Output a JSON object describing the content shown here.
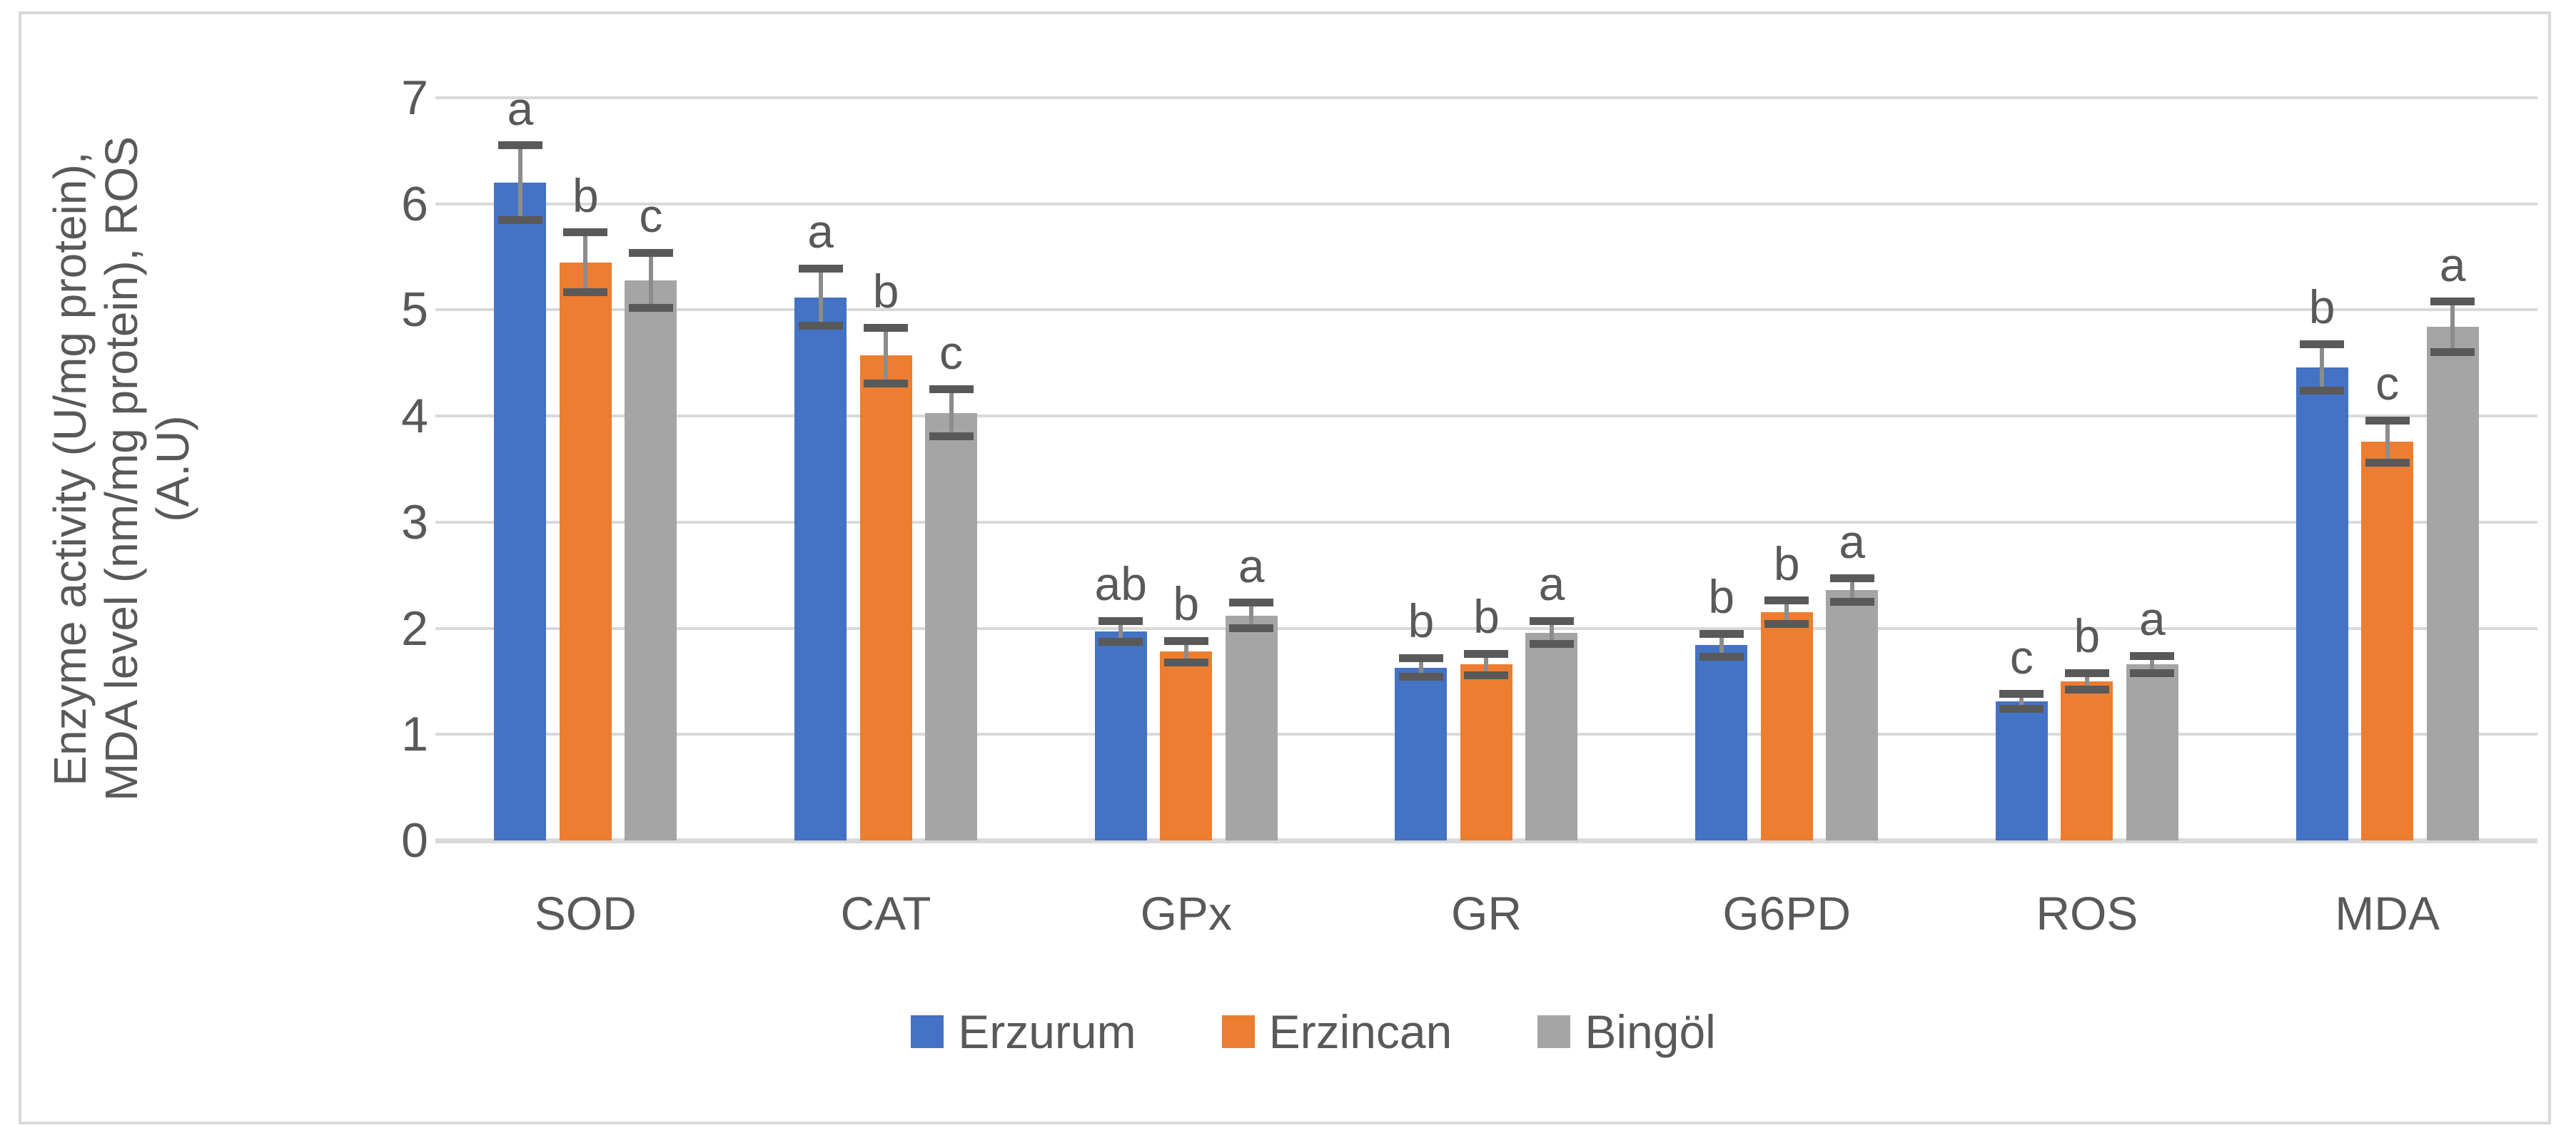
{
  "chart_data": {
    "type": "bar",
    "title": "",
    "categories": [
      "SOD",
      "CAT",
      "GPx",
      "GR",
      "G6PD",
      "ROS",
      "MDA"
    ],
    "series": [
      {
        "name": "Erzurum",
        "color": "#4472C4",
        "values": [
          6.2,
          5.12,
          1.97,
          1.63,
          1.84,
          1.31,
          4.46
        ],
        "errors": [
          0.35,
          0.27,
          0.1,
          0.09,
          0.11,
          0.07,
          0.22
        ],
        "letters": [
          "a",
          "a",
          "ab",
          "b",
          "b",
          "c",
          "b"
        ]
      },
      {
        "name": "Erzincan",
        "color": "#ED7D31",
        "values": [
          5.45,
          4.57,
          1.78,
          1.66,
          2.15,
          1.5,
          3.76
        ],
        "errors": [
          0.28,
          0.26,
          0.1,
          0.1,
          0.11,
          0.08,
          0.2
        ],
        "letters": [
          "b",
          "b",
          "b",
          "b",
          "b",
          "b",
          "c"
        ]
      },
      {
        "name": "Bingöl",
        "color": "#A5A5A5",
        "values": [
          5.28,
          4.03,
          2.12,
          1.96,
          2.36,
          1.66,
          4.84
        ],
        "errors": [
          0.26,
          0.22,
          0.12,
          0.11,
          0.11,
          0.08,
          0.24
        ],
        "letters": [
          "c",
          "c",
          "a",
          "a",
          "a",
          "a",
          "a"
        ]
      }
    ],
    "ylabel_lines": [
      "Enzyme activity (U/mg protein),",
      "MDA level (nm/mg protein), ROS",
      "(A.U)"
    ],
    "y_ticks": [
      0,
      1,
      2,
      3,
      4,
      5,
      6,
      7
    ],
    "ylim": [
      0,
      7
    ],
    "grid": true,
    "legend_position": "bottom",
    "error_bars": true
  },
  "legend": {
    "items": [
      {
        "label": "Erzurum",
        "color": "#4472C4"
      },
      {
        "label": "Erzincan",
        "color": "#ED7D31"
      },
      {
        "label": "Bingöl",
        "color": "#A5A5A5"
      }
    ]
  },
  "colors": {
    "gridline": "#D9D9D9",
    "axis_text": "#595959",
    "error_cap": "#595959",
    "error_stem": "#8c8c8c",
    "chart_border": "#D9D9D9"
  }
}
